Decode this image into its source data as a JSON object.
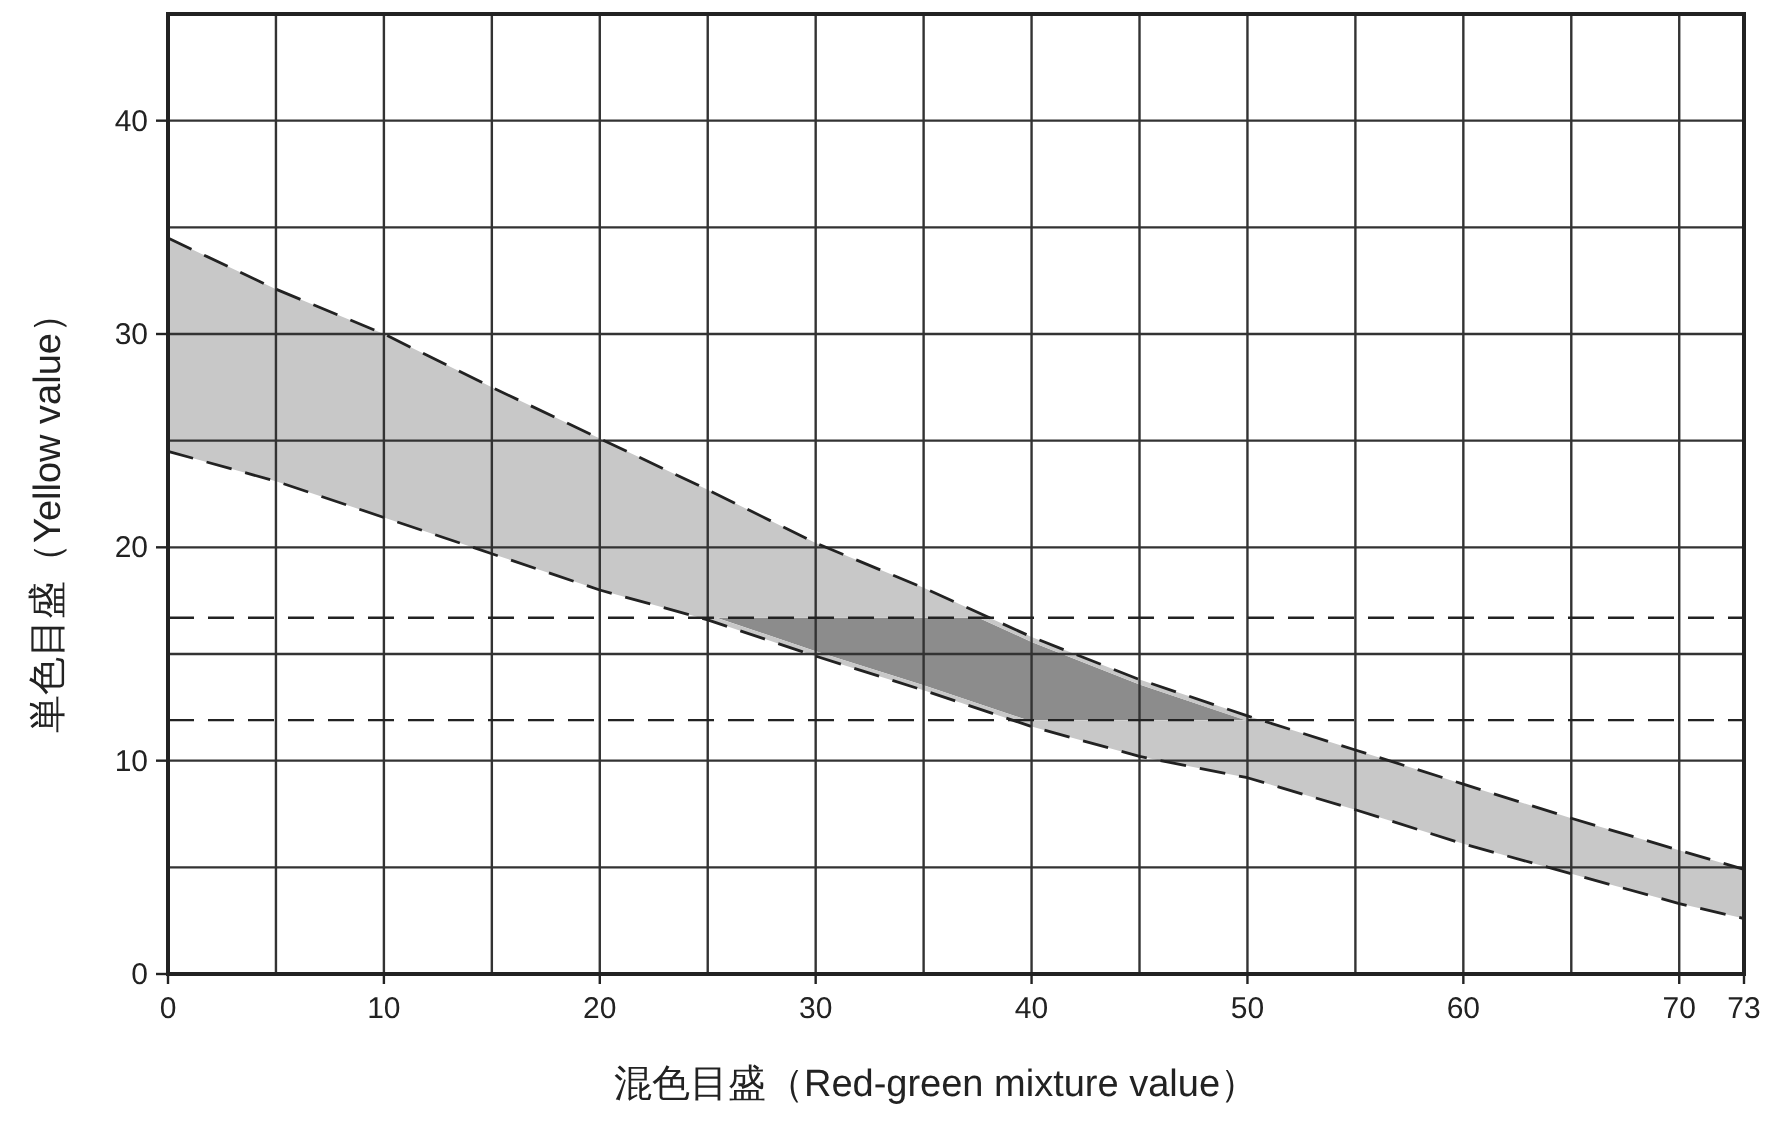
{
  "chart_data": {
    "type": "line",
    "xlabel": "混色目盛（Red-green mixture value）",
    "ylabel": "単色目盛（Yellow value）",
    "xlim": [
      0,
      73
    ],
    "ylim": [
      0,
      45
    ],
    "xticks": [
      0,
      {
        "value": 5,
        "label": null
      },
      10,
      {
        "value": 15,
        "label": null
      },
      20,
      {
        "value": 25,
        "label": null
      },
      30,
      {
        "value": 35,
        "label": null
      },
      40,
      {
        "value": 45,
        "label": null
      },
      50,
      {
        "value": 55,
        "label": null
      },
      60,
      {
        "value": 65,
        "label": null
      },
      70,
      73
    ],
    "yticks": [
      0,
      {
        "value": 5,
        "label": null
      },
      10,
      {
        "value": 15,
        "label": null
      },
      20,
      {
        "value": 25,
        "label": null
      },
      30,
      {
        "value": 35,
        "label": null
      },
      40,
      {
        "value": 45,
        "label": null
      }
    ],
    "grid": true,
    "series": [
      {
        "line_style": "dashed",
        "color": "#222222",
        "x": [
          0,
          5,
          10,
          15,
          20,
          25,
          30,
          35,
          40,
          45,
          50,
          55,
          60,
          65,
          70,
          73
        ],
        "values": [
          34.5,
          32.1,
          30,
          27.5,
          25.1,
          22.7,
          20.2,
          18.1,
          15.8,
          13.8,
          12.1,
          10.5,
          8.9,
          7.3,
          5.8,
          4.9
        ]
      },
      {
        "line_style": "dashed",
        "color": "#222222",
        "x": [
          0,
          5,
          10,
          15,
          20,
          25,
          30,
          35,
          40,
          45,
          50,
          55,
          60,
          65,
          70,
          73
        ],
        "values": [
          24.5,
          23.1,
          21.4,
          19.7,
          18.0,
          16.6,
          14.9,
          13.3,
          11.6,
          10.2,
          9.2,
          7.7,
          6.1,
          4.7,
          3.3,
          2.6
        ],
        "lower": [
          24.5,
          23.1,
          21.4,
          19.7,
          18.0,
          16.6,
          14.9,
          13.3,
          11.6,
          10.2,
          9.2,
          7.7,
          6.1,
          4.7,
          3.3,
          2.6
        ],
        "upper": [
          34.5,
          32.1,
          30,
          27.5,
          25.1,
          22.7,
          20.2,
          18.1,
          15.8,
          13.8,
          12.1,
          10.5,
          8.9,
          7.3,
          5.8,
          4.9
        ]
      }
    ],
    "bands": [
      {
        "axis": "y",
        "from": 11.9,
        "to": 16.7,
        "color": "#8c8c8c"
      }
    ],
    "ref_lines": [
      {
        "axis": "y",
        "value": 16.7,
        "line_style": "dashed",
        "color": "#222222"
      },
      {
        "axis": "y",
        "value": 11.9,
        "line_style": "dashed",
        "color": "#222222"
      }
    ]
  }
}
